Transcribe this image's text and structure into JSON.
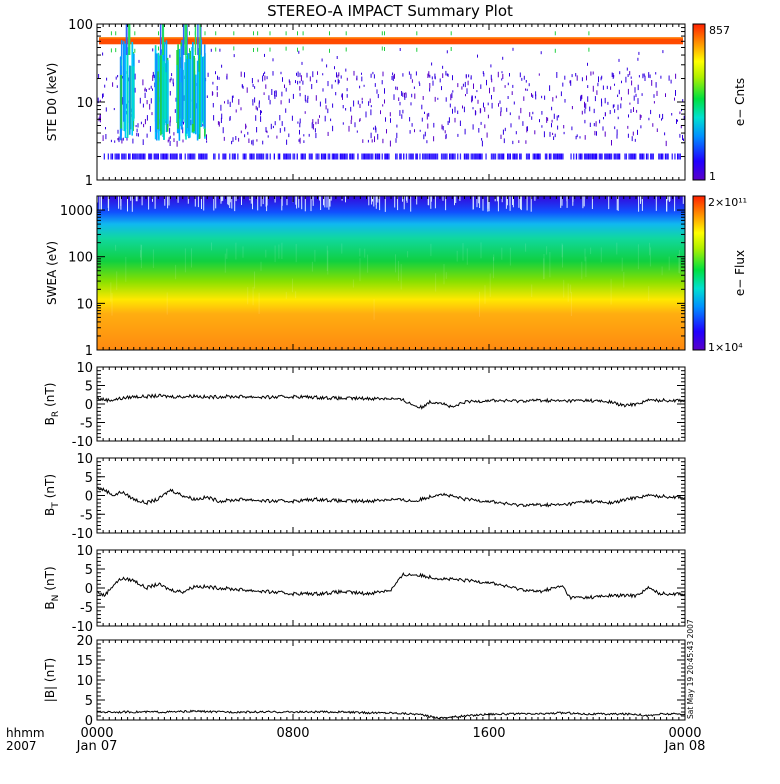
{
  "title": "STEREO-A IMPACT Summary Plot",
  "stamp": "Sat May 19 20:45:43 2007",
  "colors": {
    "frame": "#000000",
    "trace": "#000000"
  },
  "x_axis": {
    "range": [
      "2007-01-07 00:00",
      "2007-01-08 00:00"
    ],
    "corner_label": "hhmm",
    "corner_year": "2007",
    "ticks": [
      {
        "hour": 0,
        "label": "0000",
        "date": "Jan 07"
      },
      {
        "hour": 8,
        "label": "0800",
        "date": ""
      },
      {
        "hour": 16,
        "label": "1600",
        "date": ""
      },
      {
        "hour": 24,
        "label": "0000",
        "date": "Jan 08"
      }
    ]
  },
  "chart_data": [
    {
      "type": "heatmap",
      "name": "ste",
      "ylabel": "STE D0 (keV)",
      "yscale": "log",
      "ylim": [
        1,
        100
      ],
      "yticks": [
        1,
        10,
        100
      ],
      "colorbar": {
        "label": "e− Cnts",
        "max": "857",
        "min": "1",
        "range": [
          1,
          857
        ]
      },
      "features": {
        "persistent_band_keV": 60,
        "low_band_keV": 2,
        "burst_hours": [
          1.2,
          2.6,
          3.5,
          4.1
        ]
      }
    },
    {
      "type": "heatmap",
      "name": "swea",
      "ylabel": "SWEA (eV)",
      "yscale": "log",
      "ylim": [
        1,
        2000
      ],
      "yticks": [
        1,
        10,
        100,
        1000
      ],
      "colorbar": {
        "label": "e− Flux",
        "max": "2×10¹¹",
        "min": "1×10⁴",
        "range": [
          10000,
          200000000000
        ]
      },
      "profile": [
        {
          "energy": 1,
          "color": "#ff8a10"
        },
        {
          "energy": 6,
          "color": "#ffae10"
        },
        {
          "energy": 12,
          "color": "#ffe800"
        },
        {
          "energy": 30,
          "color": "#88e000"
        },
        {
          "energy": 80,
          "color": "#10d040"
        },
        {
          "energy": 250,
          "color": "#10d8a0"
        },
        {
          "energy": 500,
          "color": "#10b8f0"
        },
        {
          "energy": 900,
          "color": "#1050ff"
        },
        {
          "energy": 1800,
          "color": "#3010e0"
        }
      ]
    },
    {
      "type": "line",
      "name": "br",
      "ylabel": "B",
      "ylabel_sub": "R",
      "yunit": "(nT)",
      "ylim": [
        -10,
        10
      ],
      "yticks": [
        -10,
        -5,
        0,
        5,
        10
      ],
      "x": [
        0,
        0.5,
        1,
        1.5,
        2,
        2.5,
        3,
        3.5,
        4,
        4.5,
        5,
        6,
        7,
        8,
        9,
        10,
        11,
        12,
        12.5,
        13,
        13.3,
        13.5,
        14,
        14.5,
        15,
        16,
        17,
        18,
        19,
        20,
        21,
        21.5,
        22,
        22.5,
        23,
        24
      ],
      "y": [
        1.5,
        1,
        1.5,
        2,
        2,
        2.2,
        2,
        2,
        2.2,
        1.8,
        2,
        2,
        1.8,
        2,
        1.8,
        1.5,
        1.5,
        1.5,
        1,
        -0.5,
        -1,
        0.5,
        0.5,
        -1,
        0.5,
        1,
        0.8,
        1,
        0.8,
        1,
        0.5,
        -0.5,
        0,
        1,
        1,
        1
      ]
    },
    {
      "type": "line",
      "name": "bt",
      "ylabel": "B",
      "ylabel_sub": "T",
      "yunit": "(nT)",
      "ylim": [
        -10,
        10
      ],
      "yticks": [
        -10,
        -5,
        0,
        5,
        10
      ],
      "x": [
        0,
        0.3,
        0.7,
        1,
        1.5,
        2,
        2.5,
        3,
        3.5,
        4,
        4.5,
        5,
        6,
        7,
        8,
        9,
        10,
        11,
        12,
        13,
        14,
        15,
        16,
        17,
        18,
        19,
        20,
        21,
        22,
        22.5,
        23,
        24
      ],
      "y": [
        2,
        1.5,
        0,
        1,
        -1,
        -2,
        -1,
        1.5,
        0,
        -1,
        -0.5,
        -1.5,
        -1,
        -1.5,
        -1.5,
        -1,
        -1.5,
        -1.5,
        -1,
        -1.5,
        0.5,
        -1,
        -1.5,
        -2.5,
        -2.5,
        -2.5,
        -1.5,
        -2,
        -0.5,
        0,
        -0.2,
        -0.5
      ]
    },
    {
      "type": "line",
      "name": "bn",
      "ylabel": "B",
      "ylabel_sub": "N",
      "yunit": "(nT)",
      "ylim": [
        -10,
        10
      ],
      "yticks": [
        -10,
        -5,
        0,
        5,
        10
      ],
      "x": [
        0,
        0.3,
        0.7,
        1,
        1.5,
        2,
        2.5,
        3,
        3.5,
        4,
        5,
        6,
        7,
        8,
        9,
        10,
        11,
        12,
        12.5,
        13,
        14,
        15,
        16,
        17,
        18,
        19,
        19.3,
        20,
        21,
        22,
        22.5,
        23,
        24
      ],
      "y": [
        -1,
        -2,
        1,
        2.5,
        2,
        0,
        1,
        -0.5,
        -1,
        0.5,
        0,
        -0.5,
        -1,
        -1.5,
        -1.5,
        -1,
        -1.5,
        -0.5,
        3.5,
        3.5,
        2.5,
        2,
        1.5,
        0,
        -1,
        0.5,
        -2.5,
        -2.5,
        -2,
        -2,
        0,
        -1.5,
        -1.5
      ]
    },
    {
      "type": "line",
      "name": "bmag",
      "ylabel": "|B| (nT)",
      "ylim": [
        0,
        20
      ],
      "yticks": [
        0,
        5,
        10,
        15,
        20
      ],
      "x": [
        0,
        1,
        2,
        3,
        4,
        5,
        6,
        7,
        8,
        9,
        10,
        11,
        12,
        13,
        14,
        15,
        16,
        17,
        18,
        19,
        20,
        21,
        22,
        22.5,
        23,
        24
      ],
      "y": [
        2,
        2,
        2,
        2,
        2.2,
        2,
        2,
        2,
        2,
        2,
        2,
        1.8,
        1.8,
        1.5,
        0.5,
        1,
        1.5,
        1.5,
        1.5,
        1.8,
        1.5,
        1.5,
        1.5,
        1,
        1.5,
        1.5
      ]
    }
  ]
}
